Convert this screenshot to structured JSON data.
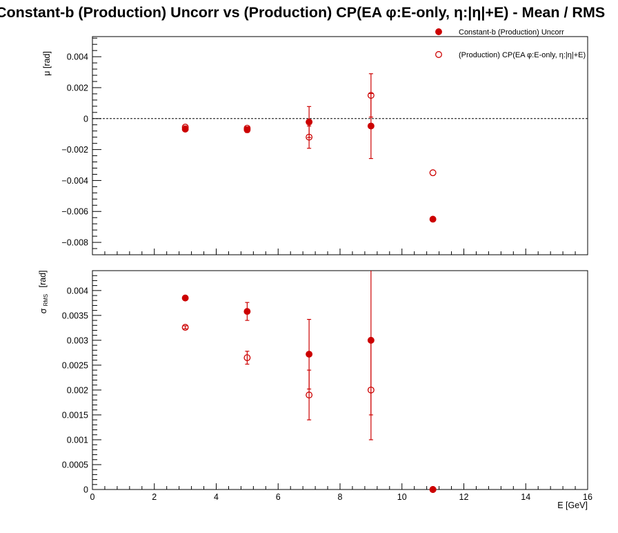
{
  "chart_data": [
    {
      "type": "scatter",
      "title": "Constant-b (Production) Uncorr vs (Production) CP(EA φ:E-only, η:|η|+E)  -  Mean / RMS",
      "ylabel": "μ  [rad]",
      "xlim": [
        0,
        16
      ],
      "ylim": [
        -0.0088,
        0.0053
      ],
      "yticks": [
        -0.008,
        -0.006,
        -0.004,
        -0.002,
        0,
        0.002,
        0.004
      ],
      "ytick_labels": [
        "−0.008",
        "−0.006",
        "−0.004",
        "−0.002",
        "0",
        "0.002",
        "0.004"
      ],
      "reference_line": 0,
      "legend_position": "top-right",
      "series": [
        {
          "name": "Constant-b (Production) Uncorr",
          "marker": "filled-circle",
          "color": "#cc0000",
          "x": [
            3,
            5,
            7,
            9,
            11
          ],
          "y": [
            -0.00068,
            -0.00072,
            -0.00022,
            -0.00048,
            -0.0065
          ],
          "yerr": [
            8e-05,
            0.00018,
            0.001,
            0.0021,
            0
          ]
        },
        {
          "name": "(Production) CP(EA φ:E-only, η:|η|+E)",
          "marker": "open-circle",
          "color": "#cc0000",
          "x": [
            3,
            5,
            7,
            9,
            11
          ],
          "y": [
            -0.00055,
            -0.00062,
            -0.0012,
            0.0015,
            -0.0035
          ],
          "yerr": [
            8e-05,
            0.0001,
            0.00072,
            0.0014,
            0
          ]
        }
      ]
    },
    {
      "type": "scatter",
      "ylabel": "σ",
      "ylabel_sub": "RMS",
      "ylabel_unit": "[rad]",
      "xlabel": "E  [GeV]",
      "xlim": [
        0,
        16
      ],
      "ylim": [
        0,
        0.0044
      ],
      "xticks": [
        0,
        2,
        4,
        6,
        8,
        10,
        12,
        14,
        16
      ],
      "xtick_labels": [
        "0",
        "2",
        "4",
        "6",
        "8",
        "10",
        "12",
        "14",
        "16"
      ],
      "yticks": [
        0,
        0.0005,
        0.001,
        0.0015,
        0.002,
        0.0025,
        0.003,
        0.0035,
        0.004
      ],
      "ytick_labels": [
        "0",
        "0.0005",
        "0.001",
        "0.0015",
        "0.002",
        "0.0025",
        "0.003",
        "0.0035",
        "0.004"
      ],
      "series": [
        {
          "name": "Constant-b (Production) Uncorr",
          "marker": "filled-circle",
          "color": "#cc0000",
          "x": [
            3,
            5,
            7,
            9,
            11
          ],
          "y": [
            0.00385,
            0.00358,
            0.00272,
            0.003,
            0.0
          ],
          "yerr": [
            4e-05,
            0.00018,
            0.0007,
            0.0015,
            0
          ]
        },
        {
          "name": "(Production) CP(EA φ:E-only, η:|η|+E)",
          "marker": "open-circle",
          "color": "#cc0000",
          "x": [
            3,
            5,
            7,
            9,
            11
          ],
          "y": [
            0.00326,
            0.00265,
            0.0019,
            0.002,
            0.0
          ],
          "yerr": [
            3e-05,
            0.00013,
            0.0005,
            0.001,
            0
          ]
        }
      ]
    }
  ]
}
